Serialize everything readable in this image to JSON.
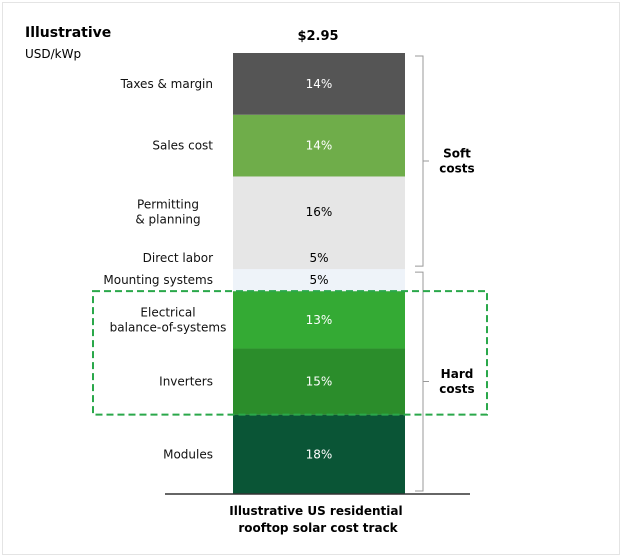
{
  "header": {
    "title": "Illustrative",
    "unit": "USD/kWp"
  },
  "chart_data": {
    "type": "bar",
    "stacked": true,
    "total_label": "$2.95",
    "caption_lines": [
      "Illustrative US residential",
      "rooftop solar cost track"
    ],
    "segments": [
      {
        "label_lines": [
          "Modules"
        ],
        "value": 18,
        "value_label": "18%",
        "color": "#0a5536",
        "text_color": "#ffffff"
      },
      {
        "label_lines": [
          "Inverters"
        ],
        "value": 15,
        "value_label": "15%",
        "color": "#2b8d2b",
        "text_color": "#ffffff"
      },
      {
        "label_lines": [
          "Electrical",
          "balance-of-systems"
        ],
        "value": 13,
        "value_label": "13%",
        "color": "#34aa34",
        "text_color": "#ffffff"
      },
      {
        "label_lines": [
          "Mounting systems"
        ],
        "value": 5,
        "value_label": "5%",
        "color": "#eef3f9",
        "text_color": "#000000"
      },
      {
        "label_lines": [
          "Direct labor"
        ],
        "value": 5,
        "value_label": "5%",
        "color": "#e6e6e6",
        "text_color": "#000000"
      },
      {
        "label_lines": [
          "Permitting",
          "& planning"
        ],
        "value": 16,
        "value_label": "16%",
        "color": "#e6e6e6",
        "text_color": "#000000"
      },
      {
        "label_lines": [
          "Sales cost"
        ],
        "value": 14,
        "value_label": "14%",
        "color": "#6fad4a",
        "text_color": "#ffffff"
      },
      {
        "label_lines": [
          "Taxes & margin"
        ],
        "value": 14,
        "value_label": "14%",
        "color": "#555555",
        "text_color": "#ffffff"
      }
    ],
    "groups": [
      {
        "label_lines": [
          "Hard",
          "costs"
        ],
        "from_segment": 0,
        "to_segment": 3
      },
      {
        "label_lines": [
          "Soft",
          "costs"
        ],
        "from_segment": 4,
        "to_segment": 7
      }
    ],
    "highlight": {
      "from_segment": 1,
      "to_segment": 2,
      "color": "#2aa84a"
    }
  }
}
